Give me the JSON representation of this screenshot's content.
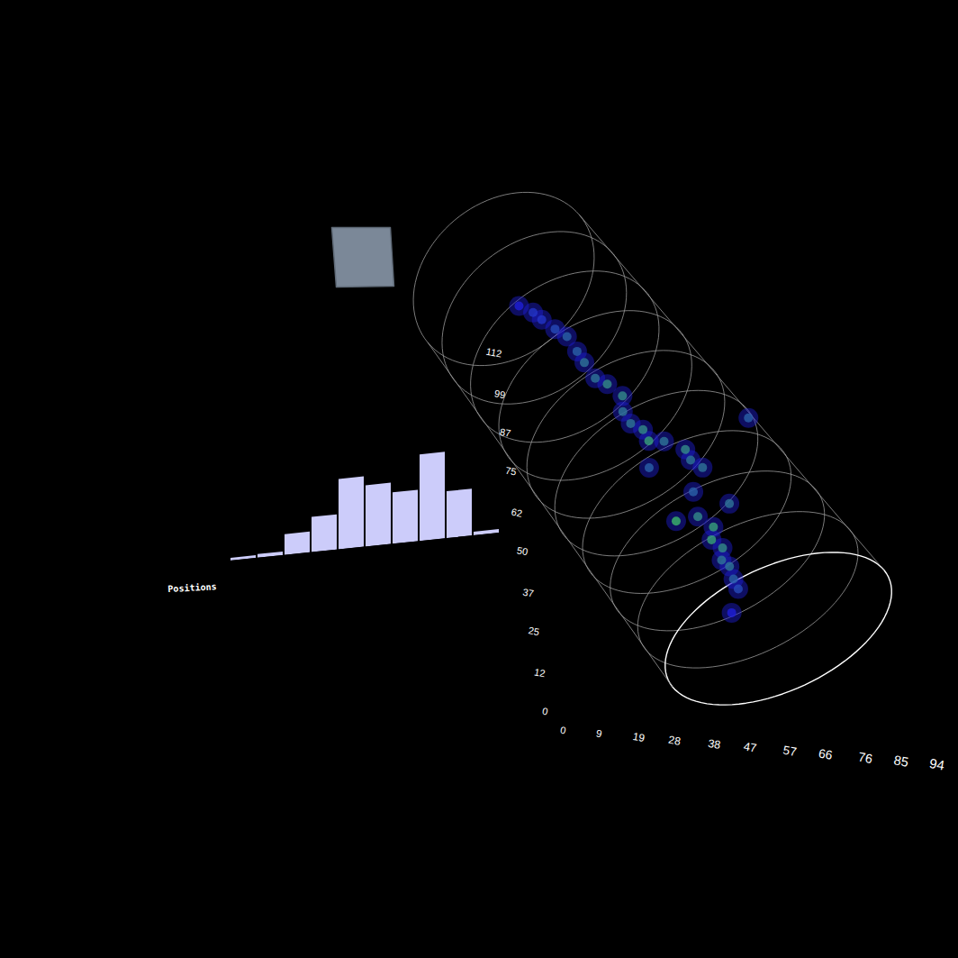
{
  "chart_data": [
    {
      "type": "histogram",
      "xlabel": "Positions",
      "bins": [
        0,
        1,
        2,
        3,
        4,
        5,
        6,
        7,
        8,
        9,
        10
      ],
      "counts": [
        3,
        4,
        23,
        39,
        78,
        68,
        57,
        96,
        52,
        4
      ],
      "color": "#ccccfa",
      "ylim": [
        0,
        100
      ],
      "tick_labels": false
    },
    {
      "type": "scatter3d",
      "xlim": [
        0,
        94
      ],
      "xticks": [
        0,
        9,
        19,
        28,
        38,
        47,
        57,
        66,
        76,
        85,
        94
      ],
      "ylim": [
        0,
        112
      ],
      "yticks": [
        0,
        12,
        25,
        37,
        50,
        62,
        75,
        87,
        99,
        112
      ],
      "color": "#1f1fd8",
      "points": {
        "position": [
          0.69,
          1.0,
          1.25,
          1.6,
          1.9,
          2.3,
          2.6,
          3.03,
          3.3,
          3.72,
          4.0,
          4.32,
          4.6,
          4.88,
          5.1,
          5.36,
          5.54,
          5.8,
          6.1,
          6.4,
          6.68,
          6.9,
          7.11,
          7.3,
          7.5,
          7.8,
          8.0,
          8.22,
          8.5,
          8.74,
          9.07,
          5.86
        ],
        "offset": [
          -0.04,
          0.02,
          0.04,
          0.08,
          0.12,
          0.11,
          0.1,
          0.09,
          0.14,
          0.18,
          0.1,
          0.09,
          0.14,
          0.12,
          0.22,
          -0.02,
          0.32,
          0.3,
          0.34,
          0.15,
          -0.12,
          0.05,
          0.33,
          0.1,
          0.02,
          0.05,
          -0.02,
          0.0,
          -0.04,
          -0.06,
          -0.23,
          0.91
        ],
        "intensity": [
          0.2,
          0.3,
          0.3,
          0.4,
          0.5,
          0.5,
          0.6,
          0.6,
          0.7,
          0.7,
          0.6,
          0.6,
          0.7,
          0.8,
          0.6,
          0.5,
          0.7,
          0.6,
          0.6,
          0.5,
          0.9,
          0.7,
          0.6,
          0.8,
          0.8,
          0.7,
          0.6,
          0.6,
          0.5,
          0.4,
          0.2,
          0.5
        ]
      }
    }
  ]
}
